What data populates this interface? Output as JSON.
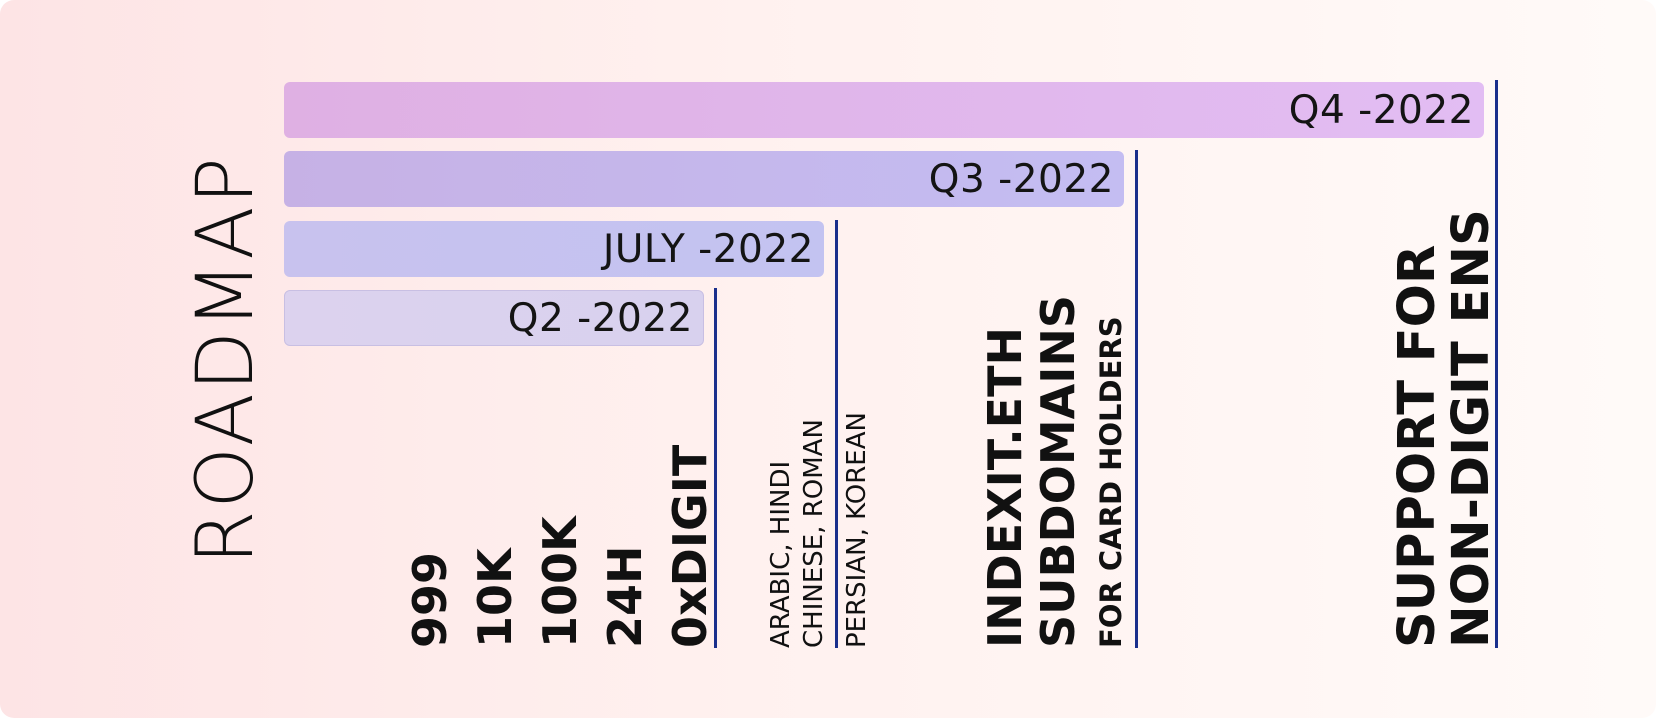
{
  "title": "ROADMAP",
  "milestones": [
    {
      "label": "Q4 -2022"
    },
    {
      "label": "Q3 -2022"
    },
    {
      "label": "JULY -2022"
    },
    {
      "label": "Q2 -2022"
    }
  ],
  "features": {
    "q2": [
      "999",
      "10K",
      "100K",
      "24H",
      "0xDIGIT"
    ],
    "july": [
      "ARABIC, HINDI",
      "CHINESE, ROMAN"
    ],
    "july_extra": "PERSIAN, KOREAN",
    "q3": [
      "INDEXIT.ETH",
      "SUBDOMAINS",
      "FOR CARD HOLDERS"
    ],
    "q4": [
      "SUPPORT FOR",
      "NON-DIGIT ENS"
    ]
  },
  "colors": {
    "marker_line": "#1a2f8c",
    "text": "#111111",
    "bar_q4": "#dfb0e3",
    "bar_q3": "#c6b1e5",
    "bar_july": "#c3c3f1",
    "bar_q2": "#dcd2ee"
  }
}
